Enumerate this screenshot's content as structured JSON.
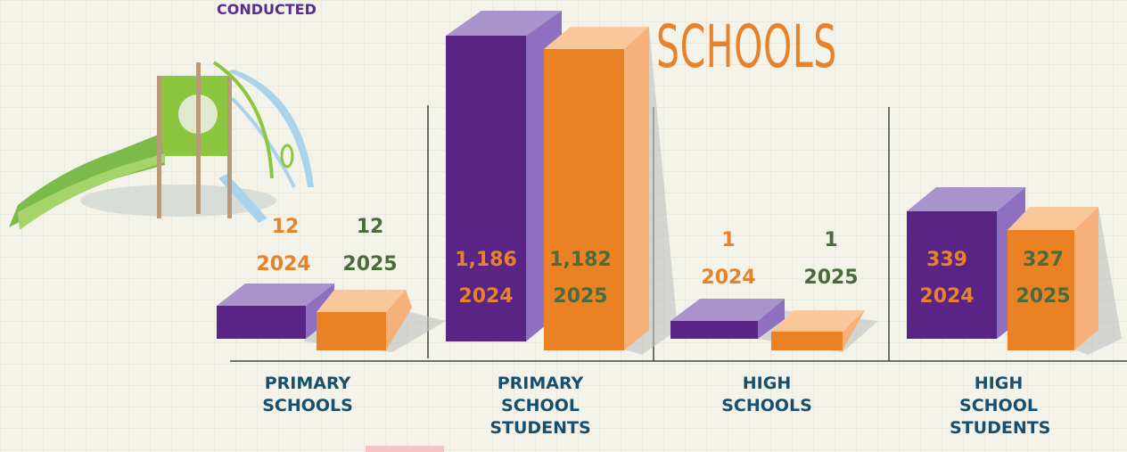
{
  "header": {
    "kicker": "CONDUCTED",
    "title": "SCHOOLS"
  },
  "groups": [
    {
      "label": "PRIMARY SCHOOLS",
      "bars": [
        {
          "value": "12",
          "year": "2024"
        },
        {
          "value": "12",
          "year": "2025"
        }
      ]
    },
    {
      "label": "PRIMARY SCHOOL STUDENTS",
      "bars": [
        {
          "value": "1,186",
          "year": "2024"
        },
        {
          "value": "1,182",
          "year": "2025"
        }
      ]
    },
    {
      "label": "HIGH SCHOOLS",
      "bars": [
        {
          "value": "1",
          "year": "2024"
        },
        {
          "value": "1",
          "year": "2025"
        }
      ]
    },
    {
      "label": "HIGH SCHOOL STUDENTS",
      "bars": [
        {
          "value": "339",
          "year": "2024"
        },
        {
          "value": "327",
          "year": "2025"
        }
      ]
    }
  ]
}
